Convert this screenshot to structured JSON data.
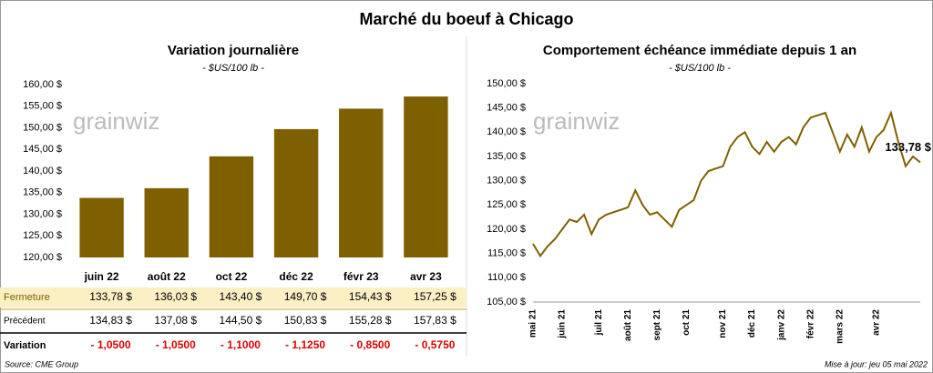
{
  "title": "Marché du boeuf à Chicago",
  "watermark": "grainwiz",
  "chart_data": [
    {
      "type": "bar",
      "title": "Variation journalière",
      "subtitle": "- $US/100 lb -",
      "categories": [
        "juin 22",
        "août 22",
        "oct 22",
        "déc 22",
        "févr 23",
        "avr 23"
      ],
      "values": [
        133.78,
        136.03,
        143.4,
        149.7,
        154.43,
        157.25
      ],
      "color": "#7f6000",
      "ylim": [
        120,
        160
      ],
      "yticks": [
        {
          "value": 120,
          "label": "120,00 $"
        },
        {
          "value": 125,
          "label": "125,00 $"
        },
        {
          "value": 130,
          "label": "130,00 $"
        },
        {
          "value": 135,
          "label": "135,00 $"
        },
        {
          "value": 140,
          "label": "140,00 $"
        },
        {
          "value": 145,
          "label": "145,00 $"
        },
        {
          "value": 150,
          "label": "150,00 $"
        },
        {
          "value": 155,
          "label": "155,00 $"
        },
        {
          "value": 160,
          "label": "160,00 $"
        }
      ],
      "grid": false
    },
    {
      "type": "line",
      "title": "Comportement  échéance immédiate depuis 1 an",
      "subtitle": "- $US/100 lb -",
      "categories": [
        "mai 21",
        null,
        null,
        null,
        "juin 21",
        null,
        null,
        null,
        null,
        "juil 21",
        null,
        null,
        null,
        "août 21",
        null,
        null,
        null,
        "sept 21",
        null,
        null,
        null,
        "oct 21",
        null,
        null,
        null,
        null,
        "nov 21",
        null,
        null,
        null,
        "déc 21",
        null,
        null,
        null,
        "janv 22",
        null,
        null,
        null,
        "févr 22",
        null,
        null,
        null,
        "mars 22",
        null,
        null,
        null,
        null,
        "avr 22",
        null,
        null,
        null,
        null,
        null,
        null
      ],
      "series": [
        {
          "name": "Fermeture",
          "color": "#7f6000",
          "values": [
            117,
            114.5,
            116.5,
            118,
            120,
            122,
            121.5,
            123,
            119,
            122,
            123,
            123.5,
            124,
            124.5,
            128,
            125,
            123,
            123.5,
            122,
            120.5,
            124,
            125,
            126,
            130,
            132,
            132.5,
            133,
            137,
            139,
            140,
            137,
            135.5,
            138,
            136,
            138,
            139,
            137.5,
            141,
            143,
            143.5,
            144,
            140,
            136,
            139.5,
            137,
            141,
            136,
            139,
            140.5,
            144,
            138,
            133,
            135,
            133.78
          ],
          "value_labels": [
            null,
            null,
            null,
            null,
            null,
            null,
            null,
            null,
            null,
            null,
            null,
            null,
            null,
            null,
            null,
            null,
            null,
            null,
            null,
            null,
            null,
            null,
            null,
            null,
            null,
            null,
            null,
            null,
            null,
            null,
            null,
            null,
            null,
            null,
            null,
            null,
            null,
            null,
            null,
            null,
            null,
            null,
            null,
            null,
            null,
            null,
            null,
            null,
            null,
            null,
            null,
            null,
            null,
            "133,78 $"
          ]
        }
      ],
      "ylim": [
        105,
        150
      ],
      "yticks": [
        {
          "value": 105,
          "label": "105,00 $"
        },
        {
          "value": 110,
          "label": "110,00 $"
        },
        {
          "value": 115,
          "label": "115,00 $"
        },
        {
          "value": 120,
          "label": "120,00 $"
        },
        {
          "value": 125,
          "label": "125,00 $"
        },
        {
          "value": 130,
          "label": "130,00 $"
        },
        {
          "value": 135,
          "label": "135,00 $"
        },
        {
          "value": 140,
          "label": "140,00 $"
        },
        {
          "value": 145,
          "label": "145,00 $"
        },
        {
          "value": 150,
          "label": "150,00 $"
        }
      ],
      "grid": false
    }
  ],
  "table": {
    "rows": [
      {
        "label": "Fermeture",
        "cells": [
          "133,78 $",
          "136,03 $",
          "143,40 $",
          "149,70 $",
          "154,43 $",
          "157,25 $"
        ]
      },
      {
        "label": "Précédent",
        "cells": [
          "134,83 $",
          "137,08 $",
          "144,50 $",
          "150,83 $",
          "155,28 $",
          "157,83 $"
        ]
      },
      {
        "label": "Variation",
        "cells": [
          "- 1,0500",
          "- 1,0500",
          "- 1,1000",
          "- 1,1250",
          "- 0,8500",
          "- 0,5750"
        ]
      }
    ]
  },
  "source": "Source: CME Group",
  "updated": "Mise à jour: jeu 05 mai 2022"
}
